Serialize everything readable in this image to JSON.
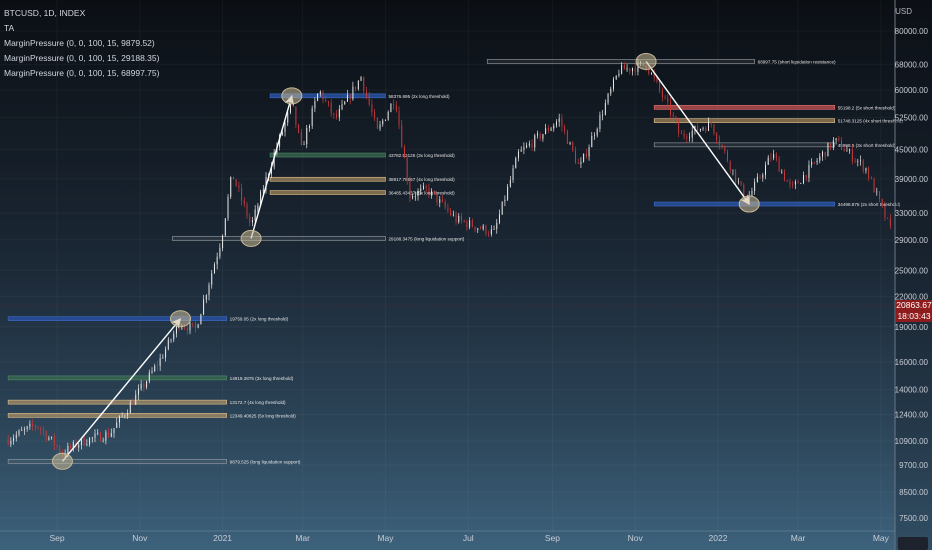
{
  "header": {
    "symbol": "BTCUSD, 1D, INDEX",
    "indicators": [
      "TA",
      "MarginPressure (0, 0, 100, 15, 9879.52)",
      "MarginPressure (0, 0, 100, 15, 29188.35)",
      "MarginPressure (0, 0, 100, 15, 68997.75)"
    ]
  },
  "price_axis": {
    "currency": "USD",
    "current_price": "20863.67",
    "countdown": "18:03:43"
  },
  "colors": {
    "candle_up": "#e8e8e8",
    "candle_down": "#c23b3b",
    "arrow": "#ffffff",
    "circle": "#c8b996"
  },
  "chart_data": {
    "type": "candlestick",
    "y_scale": "log",
    "y_ticks": [
      80000,
      68000,
      60000,
      52500,
      45000,
      39000,
      33000,
      29000,
      25000,
      22000,
      19000,
      16000,
      14000,
      12400,
      10900,
      9700,
      8500,
      7500
    ],
    "y_tick_labels": [
      "80000.00",
      "68000.00",
      "60000.00",
      "52500.00",
      "45000.00",
      "39000.00",
      "33000.00",
      "29000.00",
      "25000.00",
      "22000.00",
      "19000.00",
      "16000.00",
      "14000.00",
      "12400.00",
      "10900.00",
      "9700.00",
      "8500.00",
      "7500.00"
    ],
    "x_ticks": [
      {
        "label": "Sep",
        "date": "2020-09-01"
      },
      {
        "label": "Nov",
        "date": "2020-11-01"
      },
      {
        "label": "2021",
        "date": "2021-01-01"
      },
      {
        "label": "Mar",
        "date": "2021-03-01"
      },
      {
        "label": "May",
        "date": "2021-05-01"
      },
      {
        "label": "Jul",
        "date": "2021-07-01"
      },
      {
        "label": "Sep",
        "date": "2021-09-01"
      },
      {
        "label": "Nov",
        "date": "2021-11-01"
      },
      {
        "label": "2022",
        "date": "2022-01-01"
      },
      {
        "label": "Mar",
        "date": "2022-03-01"
      },
      {
        "label": "May",
        "date": "2022-05-01"
      }
    ],
    "price_path": [
      [
        "2020-07-27",
        11000
      ],
      [
        "2020-08-17",
        11800
      ],
      [
        "2020-09-05",
        10300
      ],
      [
        "2020-09-20",
        10900
      ],
      [
        "2020-10-10",
        11300
      ],
      [
        "2020-10-25",
        13000
      ],
      [
        "2020-11-15",
        16000
      ],
      [
        "2020-11-30",
        19300
      ],
      [
        "2020-12-12",
        18800
      ],
      [
        "2020-12-31",
        29000
      ],
      [
        "2021-01-08",
        40000
      ],
      [
        "2021-01-22",
        31000
      ],
      [
        "2021-02-08",
        44000
      ],
      [
        "2021-02-21",
        56000
      ],
      [
        "2021-02-28",
        45000
      ],
      [
        "2021-03-13",
        60000
      ],
      [
        "2021-03-25",
        52000
      ],
      [
        "2021-04-13",
        64000
      ],
      [
        "2021-04-25",
        49000
      ],
      [
        "2021-05-08",
        58000
      ],
      [
        "2021-05-19",
        36000
      ],
      [
        "2021-06-01",
        37000
      ],
      [
        "2021-06-22",
        32000
      ],
      [
        "2021-07-20",
        30000
      ],
      [
        "2021-08-07",
        44000
      ],
      [
        "2021-09-06",
        52000
      ],
      [
        "2021-09-21",
        41000
      ],
      [
        "2021-10-20",
        66000
      ],
      [
        "2021-11-09",
        68000
      ],
      [
        "2021-11-27",
        54000
      ],
      [
        "2021-12-04",
        48000
      ],
      [
        "2021-12-27",
        51000
      ],
      [
        "2022-01-22",
        35000
      ],
      [
        "2022-02-10",
        44000
      ],
      [
        "2022-02-24",
        37000
      ],
      [
        "2022-03-28",
        47000
      ],
      [
        "2022-04-20",
        41000
      ],
      [
        "2022-05-12",
        28500
      ],
      [
        "2022-05-22",
        30000
      ]
    ],
    "levels": [
      {
        "label": "9879.525 (long liquidation support)",
        "value": 9879.525,
        "start": "2020-07-27",
        "end": "2021-01-04",
        "kind": "support"
      },
      {
        "label": "12349.40625 (5x long threshold)",
        "value": 12349.40625,
        "start": "2020-07-27",
        "end": "2021-01-04",
        "kind": "tan"
      },
      {
        "label": "13172.7 (4x long threshold)",
        "value": 13172.7,
        "start": "2020-07-27",
        "end": "2021-01-04",
        "kind": "tan"
      },
      {
        "label": "14819.2875 (3x long threshold)",
        "value": 14819.2875,
        "start": "2020-07-27",
        "end": "2021-01-04",
        "kind": "green"
      },
      {
        "label": "19759.05 (2x long threshold)",
        "value": 19759.05,
        "start": "2020-07-27",
        "end": "2021-01-04",
        "kind": "blue"
      },
      {
        "label": "29188.3475 (long liquidation support)",
        "value": 29188.3475,
        "start": "2020-11-25",
        "end": "2021-05-01",
        "kind": "support"
      },
      {
        "label": "36485.43437 (5x long threshold)",
        "value": 36485.43437,
        "start": "2021-02-05",
        "end": "2021-05-01",
        "kind": "tan"
      },
      {
        "label": "38917.79667 (4x long threshold)",
        "value": 38917.79667,
        "start": "2021-02-05",
        "end": "2021-05-01",
        "kind": "tan"
      },
      {
        "label": "43782.52125 (3x long threshold)",
        "value": 43782.52125,
        "start": "2021-02-05",
        "end": "2021-05-01",
        "kind": "green"
      },
      {
        "label": "58376.695 (2x long threshold)",
        "value": 58376.695,
        "start": "2021-02-05",
        "end": "2021-05-01",
        "kind": "blue"
      },
      {
        "label": "68997.75 (short liquidation resistance)",
        "value": 68997.75,
        "start": "2021-07-15",
        "end": "2022-01-28",
        "kind": "support"
      },
      {
        "label": "55198.2 (5x short threshold)",
        "value": 55198.2,
        "start": "2021-11-15",
        "end": "2022-03-28",
        "kind": "red"
      },
      {
        "label": "51748.3125 (4x short threshold)",
        "value": 51748.3125,
        "start": "2021-11-15",
        "end": "2022-03-28",
        "kind": "tan"
      },
      {
        "label": "45998.5 (3x short threshold)",
        "value": 45998.5,
        "start": "2021-11-15",
        "end": "2022-03-28",
        "kind": "support"
      },
      {
        "label": "34498.875 (2x short threshold)",
        "value": 34498.875,
        "start": "2021-11-15",
        "end": "2022-03-28",
        "kind": "blue"
      }
    ],
    "arrows": [
      {
        "from": {
          "date": "2020-09-05",
          "price": 9879.525
        },
        "to": {
          "date": "2020-12-01",
          "price": 19759.05
        }
      },
      {
        "from": {
          "date": "2021-01-22",
          "price": 29188.3475
        },
        "to": {
          "date": "2021-02-21",
          "price": 58376.695
        }
      },
      {
        "from": {
          "date": "2021-11-09",
          "price": 68997.75
        },
        "to": {
          "date": "2022-01-24",
          "price": 34498.875
        }
      }
    ],
    "markers": [
      {
        "date": "2020-09-05",
        "price": 9879.525
      },
      {
        "date": "2020-12-01",
        "price": 19759.05
      },
      {
        "date": "2021-01-22",
        "price": 29188.3475
      },
      {
        "date": "2021-02-21",
        "price": 58376.695
      },
      {
        "date": "2021-11-09",
        "price": 68997.75
      },
      {
        "date": "2022-01-24",
        "price": 34498.875
      }
    ]
  }
}
